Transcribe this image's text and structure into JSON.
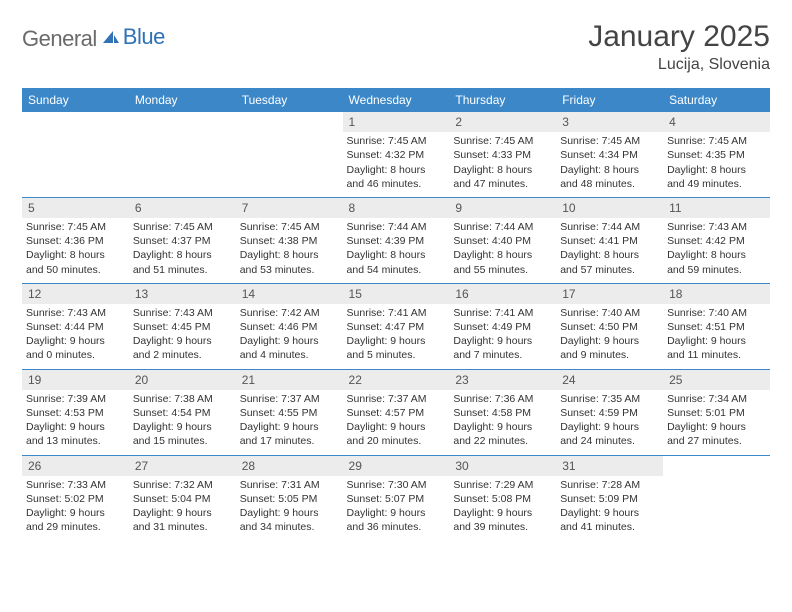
{
  "brand": {
    "name_part1": "General",
    "name_part2": "Blue",
    "text_color": "#6a6a6a",
    "accent_color": "#2f72b6"
  },
  "header": {
    "month_title": "January 2025",
    "location": "Lucija, Slovenia"
  },
  "colors": {
    "header_bg": "#3b87c8",
    "header_text": "#ffffff",
    "daynum_bg": "#ececec",
    "body_text": "#333333",
    "rule": "#3b87c8"
  },
  "day_headers": [
    "Sunday",
    "Monday",
    "Tuesday",
    "Wednesday",
    "Thursday",
    "Friday",
    "Saturday"
  ],
  "weeks": [
    [
      {
        "empty": true
      },
      {
        "empty": true
      },
      {
        "empty": true
      },
      {
        "day": "1",
        "sunrise": "Sunrise: 7:45 AM",
        "sunset": "Sunset: 4:32 PM",
        "daylight1": "Daylight: 8 hours",
        "daylight2": "and 46 minutes."
      },
      {
        "day": "2",
        "sunrise": "Sunrise: 7:45 AM",
        "sunset": "Sunset: 4:33 PM",
        "daylight1": "Daylight: 8 hours",
        "daylight2": "and 47 minutes."
      },
      {
        "day": "3",
        "sunrise": "Sunrise: 7:45 AM",
        "sunset": "Sunset: 4:34 PM",
        "daylight1": "Daylight: 8 hours",
        "daylight2": "and 48 minutes."
      },
      {
        "day": "4",
        "sunrise": "Sunrise: 7:45 AM",
        "sunset": "Sunset: 4:35 PM",
        "daylight1": "Daylight: 8 hours",
        "daylight2": "and 49 minutes."
      }
    ],
    [
      {
        "day": "5",
        "sunrise": "Sunrise: 7:45 AM",
        "sunset": "Sunset: 4:36 PM",
        "daylight1": "Daylight: 8 hours",
        "daylight2": "and 50 minutes."
      },
      {
        "day": "6",
        "sunrise": "Sunrise: 7:45 AM",
        "sunset": "Sunset: 4:37 PM",
        "daylight1": "Daylight: 8 hours",
        "daylight2": "and 51 minutes."
      },
      {
        "day": "7",
        "sunrise": "Sunrise: 7:45 AM",
        "sunset": "Sunset: 4:38 PM",
        "daylight1": "Daylight: 8 hours",
        "daylight2": "and 53 minutes."
      },
      {
        "day": "8",
        "sunrise": "Sunrise: 7:44 AM",
        "sunset": "Sunset: 4:39 PM",
        "daylight1": "Daylight: 8 hours",
        "daylight2": "and 54 minutes."
      },
      {
        "day": "9",
        "sunrise": "Sunrise: 7:44 AM",
        "sunset": "Sunset: 4:40 PM",
        "daylight1": "Daylight: 8 hours",
        "daylight2": "and 55 minutes."
      },
      {
        "day": "10",
        "sunrise": "Sunrise: 7:44 AM",
        "sunset": "Sunset: 4:41 PM",
        "daylight1": "Daylight: 8 hours",
        "daylight2": "and 57 minutes."
      },
      {
        "day": "11",
        "sunrise": "Sunrise: 7:43 AM",
        "sunset": "Sunset: 4:42 PM",
        "daylight1": "Daylight: 8 hours",
        "daylight2": "and 59 minutes."
      }
    ],
    [
      {
        "day": "12",
        "sunrise": "Sunrise: 7:43 AM",
        "sunset": "Sunset: 4:44 PM",
        "daylight1": "Daylight: 9 hours",
        "daylight2": "and 0 minutes."
      },
      {
        "day": "13",
        "sunrise": "Sunrise: 7:43 AM",
        "sunset": "Sunset: 4:45 PM",
        "daylight1": "Daylight: 9 hours",
        "daylight2": "and 2 minutes."
      },
      {
        "day": "14",
        "sunrise": "Sunrise: 7:42 AM",
        "sunset": "Sunset: 4:46 PM",
        "daylight1": "Daylight: 9 hours",
        "daylight2": "and 4 minutes."
      },
      {
        "day": "15",
        "sunrise": "Sunrise: 7:41 AM",
        "sunset": "Sunset: 4:47 PM",
        "daylight1": "Daylight: 9 hours",
        "daylight2": "and 5 minutes."
      },
      {
        "day": "16",
        "sunrise": "Sunrise: 7:41 AM",
        "sunset": "Sunset: 4:49 PM",
        "daylight1": "Daylight: 9 hours",
        "daylight2": "and 7 minutes."
      },
      {
        "day": "17",
        "sunrise": "Sunrise: 7:40 AM",
        "sunset": "Sunset: 4:50 PM",
        "daylight1": "Daylight: 9 hours",
        "daylight2": "and 9 minutes."
      },
      {
        "day": "18",
        "sunrise": "Sunrise: 7:40 AM",
        "sunset": "Sunset: 4:51 PM",
        "daylight1": "Daylight: 9 hours",
        "daylight2": "and 11 minutes."
      }
    ],
    [
      {
        "day": "19",
        "sunrise": "Sunrise: 7:39 AM",
        "sunset": "Sunset: 4:53 PM",
        "daylight1": "Daylight: 9 hours",
        "daylight2": "and 13 minutes."
      },
      {
        "day": "20",
        "sunrise": "Sunrise: 7:38 AM",
        "sunset": "Sunset: 4:54 PM",
        "daylight1": "Daylight: 9 hours",
        "daylight2": "and 15 minutes."
      },
      {
        "day": "21",
        "sunrise": "Sunrise: 7:37 AM",
        "sunset": "Sunset: 4:55 PM",
        "daylight1": "Daylight: 9 hours",
        "daylight2": "and 17 minutes."
      },
      {
        "day": "22",
        "sunrise": "Sunrise: 7:37 AM",
        "sunset": "Sunset: 4:57 PM",
        "daylight1": "Daylight: 9 hours",
        "daylight2": "and 20 minutes."
      },
      {
        "day": "23",
        "sunrise": "Sunrise: 7:36 AM",
        "sunset": "Sunset: 4:58 PM",
        "daylight1": "Daylight: 9 hours",
        "daylight2": "and 22 minutes."
      },
      {
        "day": "24",
        "sunrise": "Sunrise: 7:35 AM",
        "sunset": "Sunset: 4:59 PM",
        "daylight1": "Daylight: 9 hours",
        "daylight2": "and 24 minutes."
      },
      {
        "day": "25",
        "sunrise": "Sunrise: 7:34 AM",
        "sunset": "Sunset: 5:01 PM",
        "daylight1": "Daylight: 9 hours",
        "daylight2": "and 27 minutes."
      }
    ],
    [
      {
        "day": "26",
        "sunrise": "Sunrise: 7:33 AM",
        "sunset": "Sunset: 5:02 PM",
        "daylight1": "Daylight: 9 hours",
        "daylight2": "and 29 minutes."
      },
      {
        "day": "27",
        "sunrise": "Sunrise: 7:32 AM",
        "sunset": "Sunset: 5:04 PM",
        "daylight1": "Daylight: 9 hours",
        "daylight2": "and 31 minutes."
      },
      {
        "day": "28",
        "sunrise": "Sunrise: 7:31 AM",
        "sunset": "Sunset: 5:05 PM",
        "daylight1": "Daylight: 9 hours",
        "daylight2": "and 34 minutes."
      },
      {
        "day": "29",
        "sunrise": "Sunrise: 7:30 AM",
        "sunset": "Sunset: 5:07 PM",
        "daylight1": "Daylight: 9 hours",
        "daylight2": "and 36 minutes."
      },
      {
        "day": "30",
        "sunrise": "Sunrise: 7:29 AM",
        "sunset": "Sunset: 5:08 PM",
        "daylight1": "Daylight: 9 hours",
        "daylight2": "and 39 minutes."
      },
      {
        "day": "31",
        "sunrise": "Sunrise: 7:28 AM",
        "sunset": "Sunset: 5:09 PM",
        "daylight1": "Daylight: 9 hours",
        "daylight2": "and 41 minutes."
      },
      {
        "empty": true
      }
    ]
  ]
}
